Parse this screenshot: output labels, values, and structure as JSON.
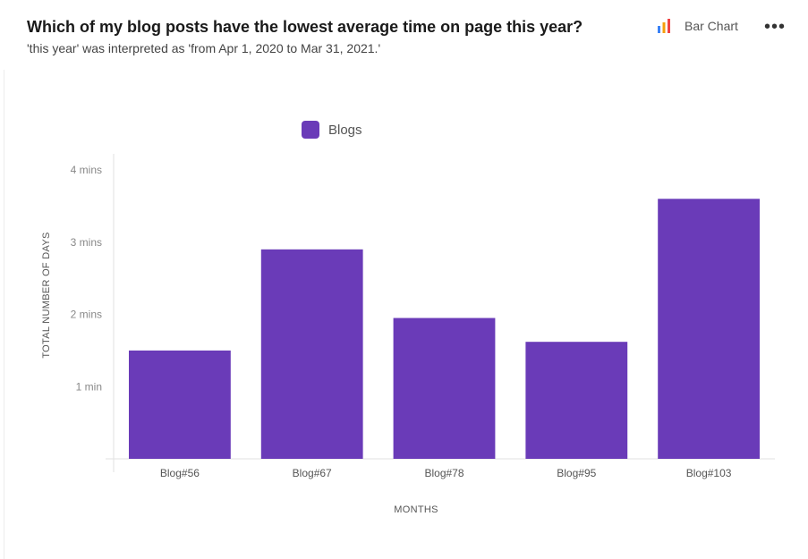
{
  "header": {
    "title": "Which of my blog posts have the lowest average time on page this year?",
    "subtitle": "'this year' was interpreted as 'from Apr 1, 2020 to Mar 31, 2021.'"
  },
  "toolbar": {
    "chart_type_label": "Bar Chart",
    "chart_type_icon": "bar-chart-icon",
    "more_icon": "more-options-icon",
    "more_label": "•••"
  },
  "colors": {
    "bar": "#6a3bb8",
    "icon_bars": [
      "#3b82f6",
      "#f59e0b",
      "#ef4444"
    ]
  },
  "chart_data": {
    "type": "bar",
    "legend": {
      "label": "Blogs",
      "placement": "top"
    },
    "xlabel": "MONTHS",
    "ylabel": "TOTAL NUMBER OF DAYS",
    "categories": [
      "Blog#56",
      "Blog#67",
      "Blog#78",
      "Blog#95",
      "Blog#103"
    ],
    "values": [
      1.5,
      2.9,
      1.95,
      1.62,
      3.6
    ],
    "ylim": [
      0,
      4
    ],
    "yticks": [
      {
        "value": 1,
        "label": "1 min"
      },
      {
        "value": 2,
        "label": "2 mins"
      },
      {
        "value": 3,
        "label": "3 mins"
      },
      {
        "value": 4,
        "label": "4 mins"
      }
    ],
    "grid": false
  }
}
